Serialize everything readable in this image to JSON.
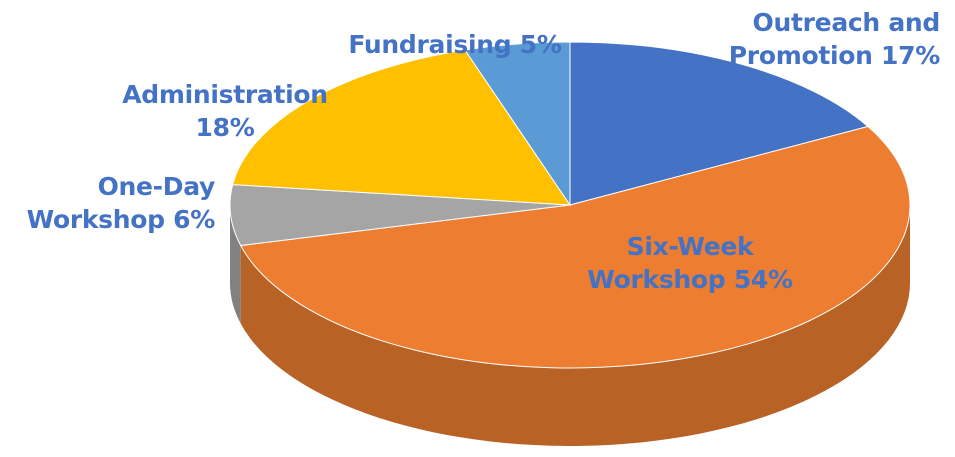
{
  "chart_data": {
    "type": "pie",
    "three_d": true,
    "categories": [
      "Outreach and Promotion",
      "Six-Week Workshop",
      "One-Day Workshop",
      "Administration",
      "Fundraising"
    ],
    "values": [
      17,
      54,
      6,
      18,
      5
    ],
    "value_labels": [
      "17%",
      "54%",
      "6%",
      "18%",
      "5%"
    ],
    "colors": [
      "#4472c4",
      "#ed7d31",
      "#a5a5a5",
      "#ffc000",
      "#5b9bd5"
    ],
    "label_color": "#4472c4"
  }
}
